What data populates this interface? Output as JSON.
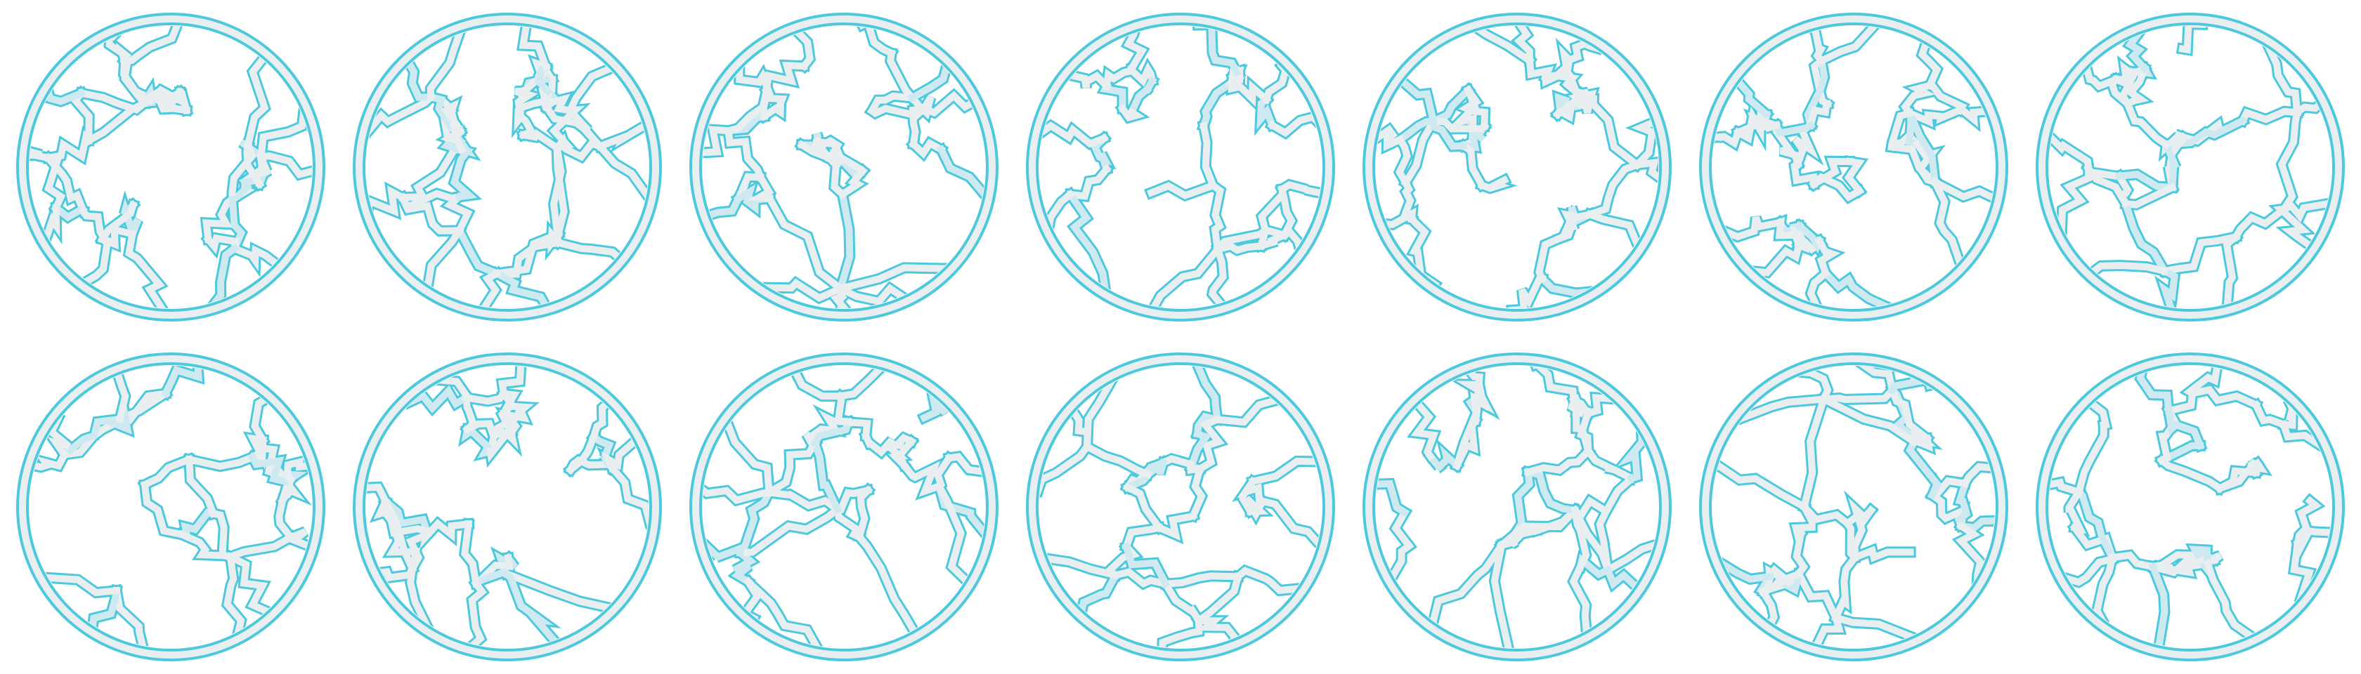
{
  "colors": {
    "background": "#ffffff",
    "outline": "#4cc9dc",
    "fill": "#e9eef0",
    "fill_light": "#cfe9f0"
  },
  "grid": {
    "rows": 2,
    "columns": 7,
    "tile_count": 14
  }
}
